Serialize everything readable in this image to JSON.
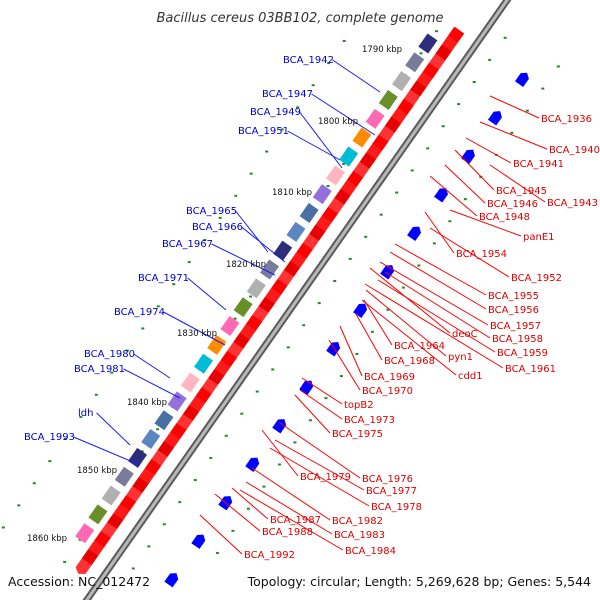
{
  "title": "Bacillus cereus 03BB102, complete genome",
  "footer": {
    "accession": "Accession: NC_012472",
    "summary": "Topology: circular; Length: 5,269,628 bp; Genes: 5,544"
  },
  "scale_labels": [
    "1790 kbp",
    "1800 kbp",
    "1810 kbp",
    "1820 kbp",
    "1830 kbp",
    "1840 kbp",
    "1850 kbp",
    "1860 kbp"
  ],
  "reverse_strand_labels": [
    "BCA_1942",
    "BCA_1947",
    "BCA_1949",
    "BCA_1951",
    "BCA_1965",
    "BCA_1966",
    "BCA_1967",
    "BCA_1971",
    "BCA_1974",
    "BCA_1980",
    "BCA_1981",
    "ldh",
    "BCA_1993"
  ],
  "forward_strand_labels": [
    "BCA_1936",
    "BCA_1940",
    "BCA_1941",
    "BCA_1945",
    "BCA_1943",
    "BCA_1946",
    "BCA_1948",
    "panE1",
    "BCA_1954",
    "BCA_1952",
    "BCA_1955",
    "BCA_1956",
    "deoC",
    "BCA_1957",
    "BCA_1958",
    "BCA_1964",
    "BCA_1959",
    "pyn1",
    "BCA_1968",
    "BCA_1961",
    "cdd1",
    "BCA_1969",
    "BCA_1970",
    "topB2",
    "BCA_1973",
    "BCA_1975",
    "BCA_1976",
    "BCA_1979",
    "BCA_1977",
    "BCA_1978",
    "BCA_1982",
    "BCA_1987",
    "BCA_1983",
    "BCA_1988",
    "BCA_1984",
    "BCA_1992"
  ],
  "colors": {
    "backbone": "#909090",
    "forward_cds": "#ff0000",
    "reverse_cds": "#0000ff",
    "tick": "#228b22",
    "reverse_label": "#0000cc",
    "forward_label": "#dd0000"
  }
}
